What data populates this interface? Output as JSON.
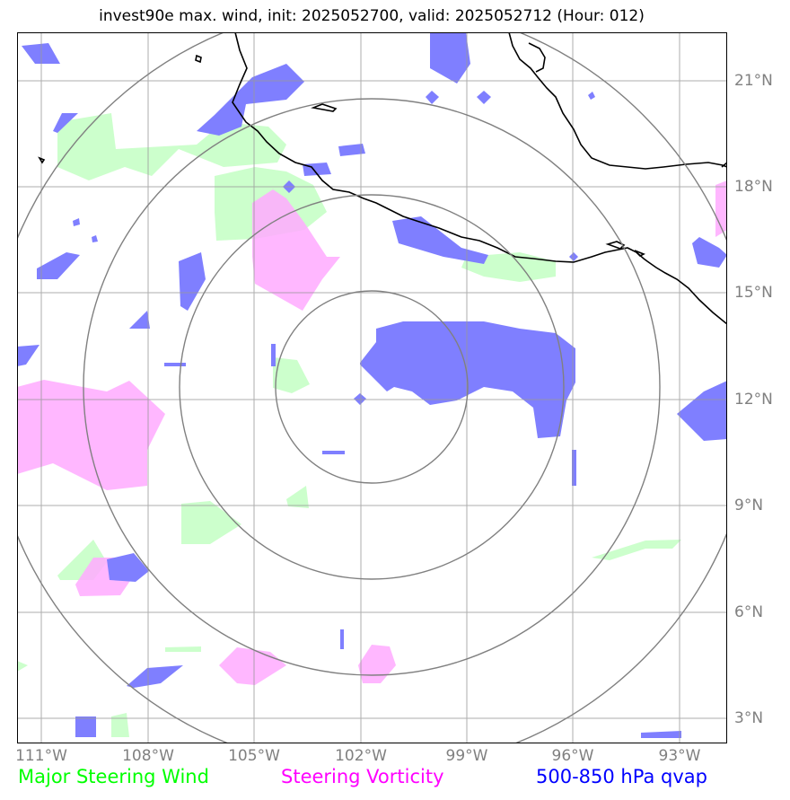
{
  "title": "invest90e max. wind, init: 2025052700, valid: 2025052712 (Hour: 012)",
  "x_ticks": [
    "111°W",
    "108°W",
    "105°W",
    "102°W",
    "99°W",
    "96°W",
    "93°W"
  ],
  "y_ticks": [
    "21°N",
    "18°N",
    "15°N",
    "12°N",
    "9°N",
    "6°N",
    "3°N"
  ],
  "legend": [
    {
      "label": "Major Steering Wind",
      "color": "#00ff00"
    },
    {
      "label": "Steering Vorticity",
      "color": "#ff00ff"
    },
    {
      "label": "500-850 hPa qvap",
      "color": "#0000ff"
    }
  ],
  "colors": {
    "steering_wind_fill": "#ccffcc",
    "steering_vorticity_fill": "#ffaaff",
    "qvap_fill": "#7f7fff",
    "range_rings": "#808080",
    "gridlines": "#999999",
    "coastline": "#000000"
  },
  "map": {
    "projection": "lat-lon",
    "lon_range_deg": [
      "111.7°W",
      "91.7°W"
    ],
    "lat_range_deg": [
      "2.4°N",
      "22.3°N"
    ],
    "storm_center": {
      "lon": "101.7°W",
      "lat": "12.4°N"
    },
    "range_rings": 4
  }
}
